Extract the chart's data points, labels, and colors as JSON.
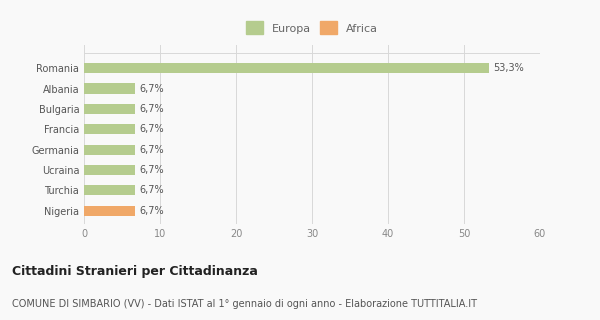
{
  "countries": [
    "Romania",
    "Albania",
    "Bulgaria",
    "Francia",
    "Germania",
    "Ucraina",
    "Turchia",
    "Nigeria"
  ],
  "values": [
    53.3,
    6.7,
    6.7,
    6.7,
    6.7,
    6.7,
    6.7,
    6.7
  ],
  "colors": [
    "#b5cc8e",
    "#b5cc8e",
    "#b5cc8e",
    "#b5cc8e",
    "#b5cc8e",
    "#b5cc8e",
    "#b5cc8e",
    "#f0a868"
  ],
  "labels": [
    "53,3%",
    "6,7%",
    "6,7%",
    "6,7%",
    "6,7%",
    "6,7%",
    "6,7%",
    "6,7%"
  ],
  "legend_labels": [
    "Europa",
    "Africa"
  ],
  "legend_colors": [
    "#b5cc8e",
    "#f0a868"
  ],
  "xlim": [
    0,
    60
  ],
  "xticks": [
    0,
    10,
    20,
    30,
    40,
    50,
    60
  ],
  "title": "Cittadini Stranieri per Cittadinanza",
  "subtitle": "COMUNE DI SIMBARIO (VV) - Dati ISTAT al 1° gennaio di ogni anno - Elaborazione TUTTITALIA.IT",
  "bg_color": "#f9f9f9",
  "grid_color": "#d8d8d8",
  "title_fontsize": 9,
  "subtitle_fontsize": 7,
  "label_fontsize": 7,
  "tick_fontsize": 7,
  "legend_fontsize": 8,
  "bar_height": 0.5
}
